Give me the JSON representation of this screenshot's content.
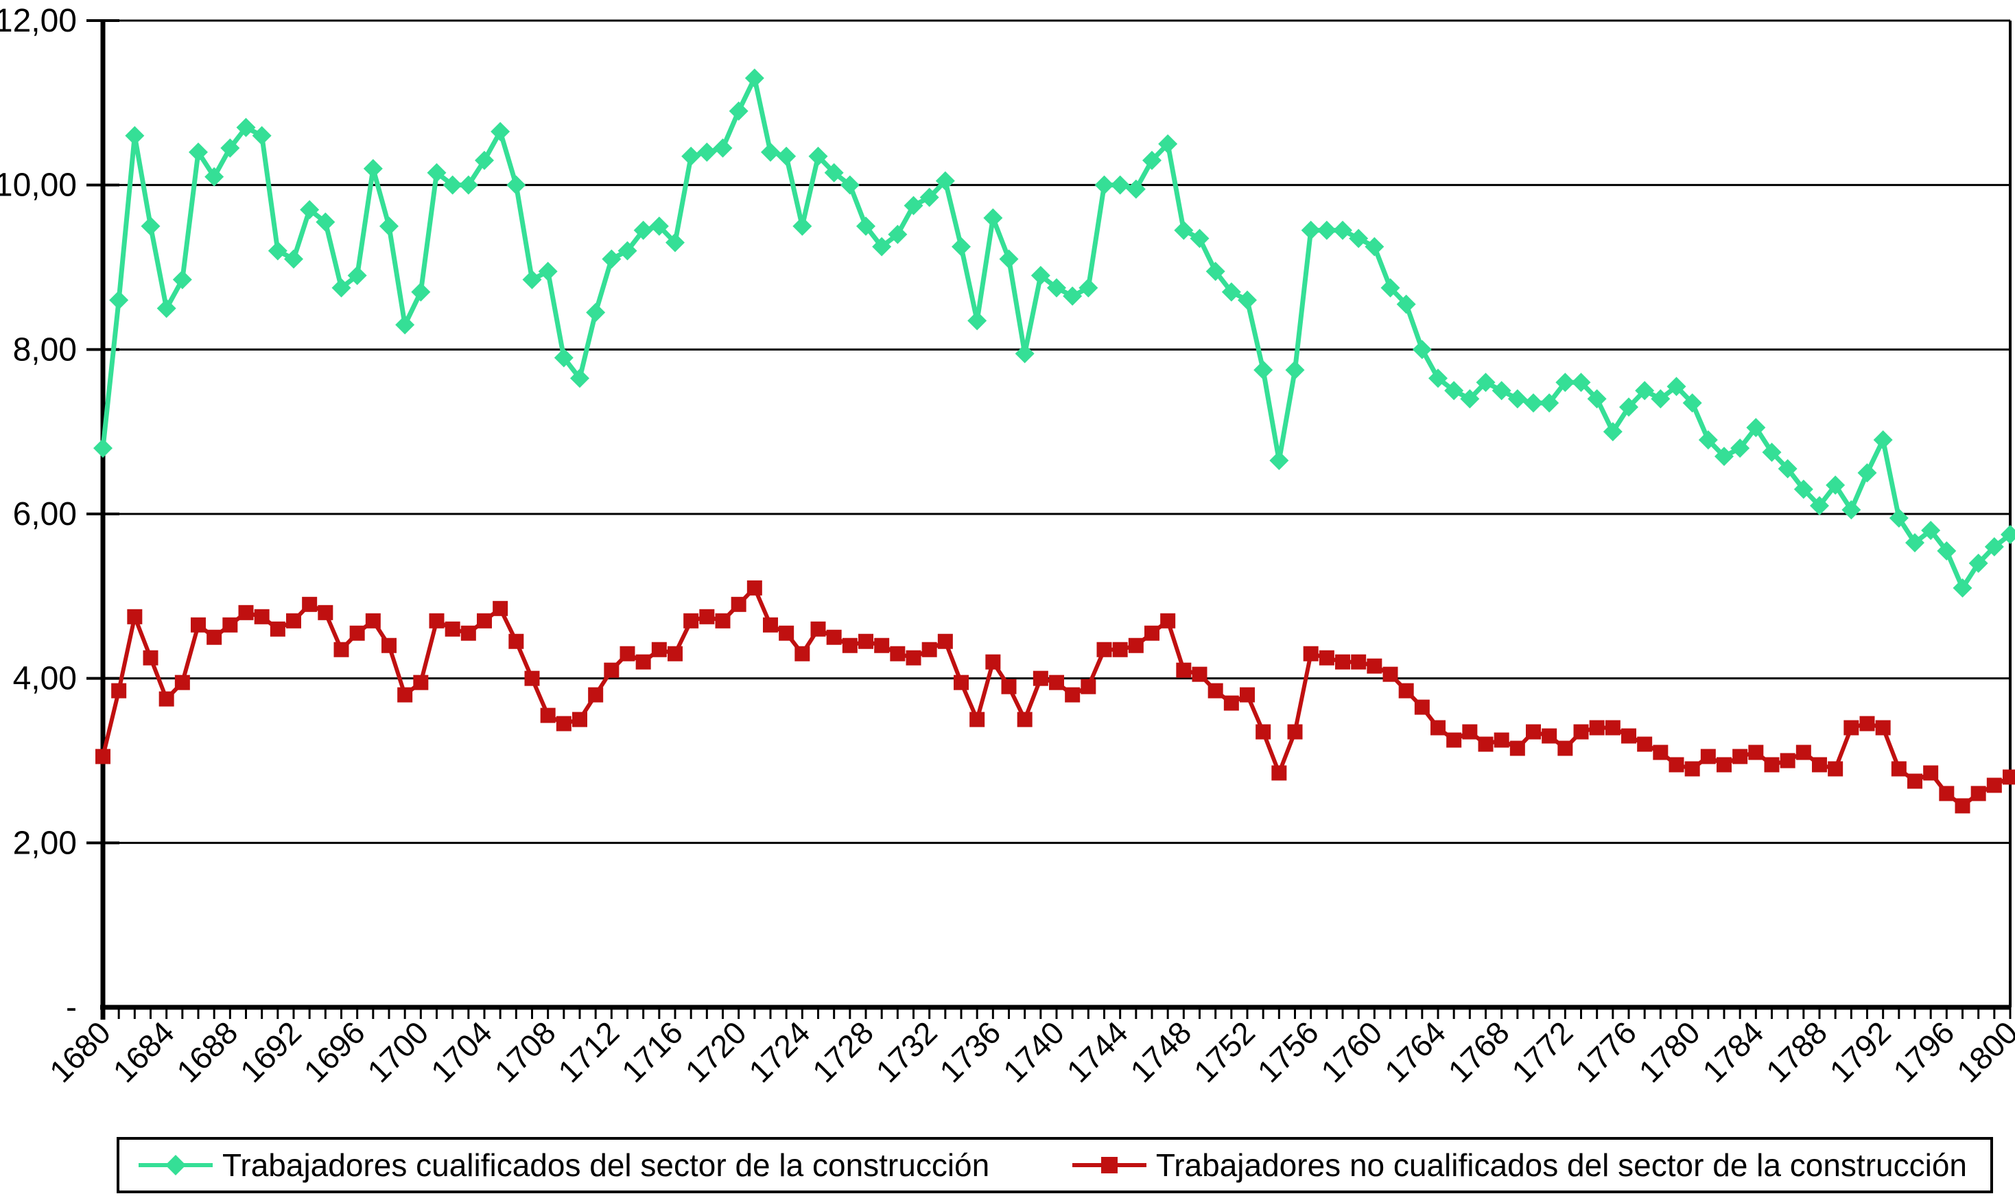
{
  "chart_data": {
    "type": "line",
    "title": "",
    "xlabel": "",
    "ylabel": "",
    "x_start": 1680,
    "x_end": 1800,
    "x_step": 1,
    "x_tick_interval": 4,
    "ylim": [
      0,
      12
    ],
    "grid": "horizontal",
    "grid_color": "#000000",
    "background_color": "#ffffff",
    "legend_position": "bottom",
    "x_tick_labels": [
      "1680",
      "1684",
      "1688",
      "1692",
      "1696",
      "1700",
      "1704",
      "1708",
      "1712",
      "1716",
      "1720",
      "1724",
      "1728",
      "1732",
      "1736",
      "1740",
      "1744",
      "1748",
      "1752",
      "1756",
      "1760",
      "1764",
      "1768",
      "1772",
      "1776",
      "1780",
      "1784",
      "1788",
      "1792",
      "1796",
      "1800"
    ],
    "y_ticks": [
      {
        "value": 0,
        "label": "-"
      },
      {
        "value": 2,
        "label": "2,00"
      },
      {
        "value": 4,
        "label": "4,00"
      },
      {
        "value": 6,
        "label": "6,00"
      },
      {
        "value": 8,
        "label": "8,00"
      },
      {
        "value": 10,
        "label": "10,00"
      },
      {
        "value": 12,
        "label": "12,00"
      }
    ],
    "series": [
      {
        "name": "Trabajadores cualificados del sector de la construcción",
        "color": "#35DF96",
        "marker": "diamond",
        "values": [
          6.8,
          8.6,
          10.6,
          9.5,
          8.5,
          8.85,
          10.4,
          10.1,
          10.45,
          10.7,
          10.6,
          9.2,
          9.1,
          9.7,
          9.55,
          8.75,
          8.9,
          10.2,
          9.5,
          8.3,
          8.7,
          10.15,
          10.0,
          10.0,
          10.3,
          10.65,
          10.0,
          8.85,
          8.95,
          7.9,
          7.65,
          8.45,
          9.1,
          9.2,
          9.45,
          9.5,
          9.3,
          10.35,
          10.4,
          10.45,
          10.9,
          11.3,
          10.4,
          10.35,
          9.5,
          10.35,
          10.15,
          10.0,
          9.5,
          9.25,
          9.4,
          9.75,
          9.85,
          10.05,
          9.25,
          8.35,
          9.6,
          9.1,
          7.95,
          8.9,
          8.75,
          8.65,
          8.75,
          10.0,
          10.0,
          9.95,
          10.3,
          10.5,
          9.45,
          9.35,
          8.95,
          8.7,
          8.6,
          7.75,
          6.65,
          7.75,
          9.45,
          9.45,
          9.45,
          9.35,
          9.25,
          8.75,
          8.55,
          8.0,
          7.65,
          7.5,
          7.4,
          7.6,
          7.5,
          7.4,
          7.35,
          7.35,
          7.6,
          7.6,
          7.4,
          7.0,
          7.3,
          7.5,
          7.4,
          7.55,
          7.35,
          6.9,
          6.7,
          6.8,
          7.05,
          6.75,
          6.55,
          6.3,
          6.1,
          6.35,
          6.05,
          6.5,
          6.9,
          5.95,
          5.65,
          5.8,
          5.55,
          5.1,
          5.4,
          5.6,
          5.75
        ]
      },
      {
        "name": "Trabajadores no cualificados del sector de la construcción",
        "color": "#C01010",
        "marker": "square",
        "values": [
          3.05,
          3.85,
          4.75,
          4.25,
          3.75,
          3.95,
          4.65,
          4.5,
          4.65,
          4.8,
          4.75,
          4.6,
          4.7,
          4.9,
          4.8,
          4.35,
          4.55,
          4.7,
          4.4,
          3.8,
          3.95,
          4.7,
          4.6,
          4.55,
          4.7,
          4.85,
          4.45,
          4.0,
          3.55,
          3.45,
          3.5,
          3.8,
          4.1,
          4.3,
          4.2,
          4.35,
          4.3,
          4.7,
          4.75,
          4.7,
          4.9,
          5.1,
          4.65,
          4.55,
          4.3,
          4.6,
          4.5,
          4.4,
          4.45,
          4.4,
          4.3,
          4.25,
          4.35,
          4.45,
          3.95,
          3.5,
          4.2,
          3.9,
          3.5,
          4.0,
          3.95,
          3.8,
          3.9,
          4.35,
          4.35,
          4.4,
          4.55,
          4.7,
          4.1,
          4.05,
          3.85,
          3.7,
          3.8,
          3.35,
          2.85,
          3.35,
          4.3,
          4.25,
          4.2,
          4.2,
          4.15,
          4.05,
          3.85,
          3.65,
          3.4,
          3.25,
          3.35,
          3.2,
          3.25,
          3.15,
          3.35,
          3.3,
          3.15,
          3.35,
          3.4,
          3.4,
          3.3,
          3.2,
          3.1,
          2.95,
          2.9,
          3.05,
          2.95,
          3.05,
          3.1,
          2.95,
          3.0,
          3.1,
          2.95,
          2.9,
          3.4,
          3.45,
          3.4,
          2.9,
          2.75,
          2.85,
          2.6,
          2.45,
          2.6,
          2.7,
          2.8
        ]
      }
    ]
  },
  "legend": {
    "items": [
      {
        "label": "Trabajadores cualificados del sector de la construcción",
        "color": "#35DF96",
        "marker": "diamond"
      },
      {
        "label": "Trabajadores no cualificados del sector de la construcción",
        "color": "#C01010",
        "marker": "square"
      }
    ]
  }
}
